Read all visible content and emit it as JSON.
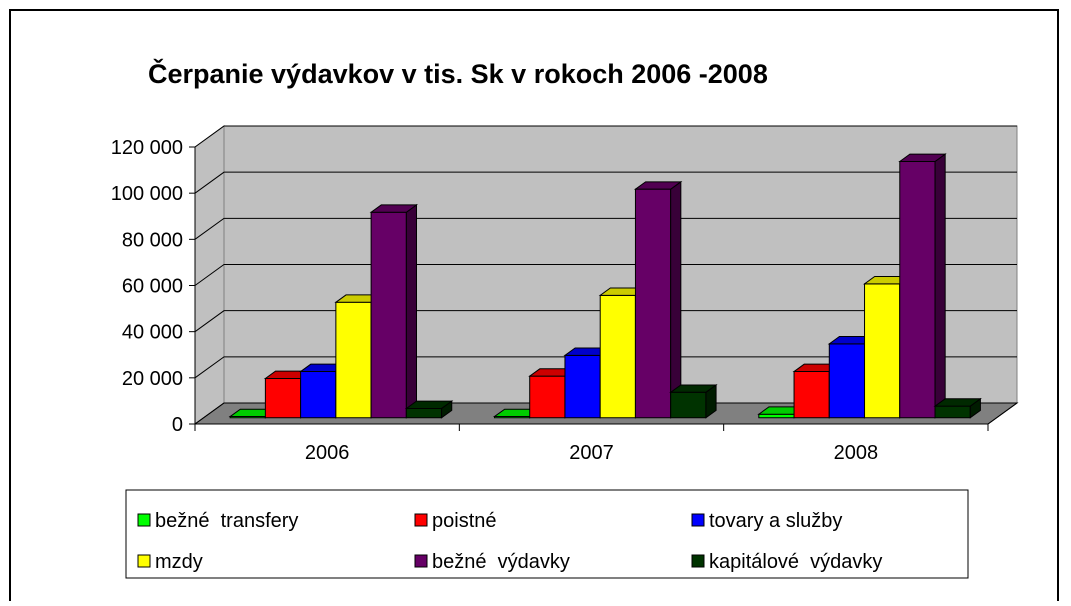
{
  "chart_data": {
    "type": "bar",
    "title": "Čerpanie výdavkov v tis. Sk v rokoch 2006 -2008",
    "categories": [
      "2006",
      "2007",
      "2008"
    ],
    "series": [
      {
        "name": "bežné  transfery",
        "color": "#00ff00",
        "values": [
          500,
          500,
          1500
        ]
      },
      {
        "name": "poistné",
        "color": "#ff0000",
        "values": [
          17000,
          18000,
          20000
        ]
      },
      {
        "name": "tovary a služby",
        "color": "#0000ff",
        "values": [
          20000,
          27000,
          32000
        ]
      },
      {
        "name": "mzdy",
        "color": "#ffff00",
        "values": [
          50000,
          53000,
          58000
        ]
      },
      {
        "name": "bežné  výdavky",
        "color": "#660066",
        "values": [
          89000,
          99000,
          111000
        ]
      },
      {
        "name": "kapitálové  výdavky",
        "color": "#003300",
        "values": [
          4000,
          11000,
          5000
        ]
      }
    ],
    "ylim": [
      0,
      120000
    ],
    "yticks": [
      {
        "value": 0,
        "label": "0"
      },
      {
        "value": 20000,
        "label": "20 000"
      },
      {
        "value": 40000,
        "label": "40 000"
      },
      {
        "value": 60000,
        "label": "60 000"
      },
      {
        "value": 80000,
        "label": "80 000"
      },
      {
        "value": 100000,
        "label": "100 000"
      },
      {
        "value": 120000,
        "label": "120 000"
      }
    ],
    "grid": true,
    "legend": "bottom"
  }
}
